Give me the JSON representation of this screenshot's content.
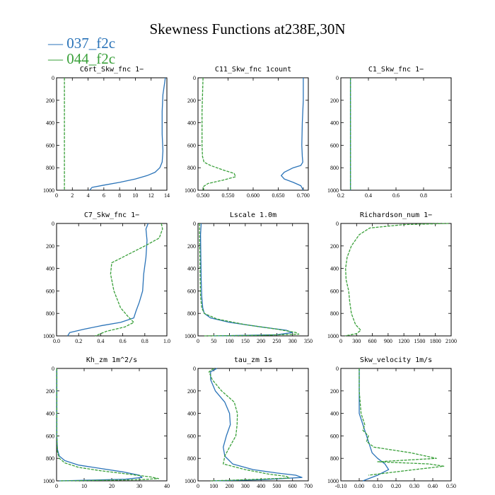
{
  "figure": {
    "title": "Skewness Functions at238E,30N",
    "legend": [
      {
        "label": "— 037_f2c",
        "color": "#2a73b8"
      },
      {
        "label": "— 044_f2c",
        "color": "#3aa03a"
      }
    ]
  },
  "chart_data": [
    {
      "type": "line",
      "title": "C6rt_Skw_fnc   1−",
      "xlim": [
        0,
        14
      ],
      "ylim": [
        0,
        1000
      ],
      "y_inverted": true,
      "xticks": [
        0,
        2,
        4,
        6,
        8,
        10,
        12,
        14
      ],
      "yticks": [
        0,
        200,
        400,
        600,
        800,
        1000
      ],
      "series": [
        {
          "name": "037_f2c",
          "color": "#2a73b8",
          "dashed": false,
          "x": [
            13.8,
            13.7,
            13.5,
            13.4,
            13.4,
            13.5,
            13.4,
            13.1,
            12.5,
            11.5,
            10,
            8,
            6,
            4.5,
            4.2
          ],
          "y": [
            0,
            50,
            150,
            300,
            500,
            650,
            750,
            800,
            840,
            870,
            900,
            930,
            955,
            975,
            1000
          ]
        },
        {
          "name": "044_f2c",
          "color": "#3aa03a",
          "dashed": true,
          "x": [
            1,
            1,
            1,
            1,
            1
          ],
          "y": [
            0,
            250,
            500,
            750,
            1000
          ]
        }
      ]
    },
    {
      "type": "line",
      "title": "C11_Skw_fnc   1count",
      "xlim": [
        0.49,
        0.71
      ],
      "ylim": [
        0,
        1000
      ],
      "y_inverted": true,
      "xticks": [
        0.5,
        0.55,
        0.6,
        0.65,
        0.7
      ],
      "xtick_labels": [
        "0.500",
        "0.550",
        "0.600",
        "0.650",
        "0.700"
      ],
      "yticks": [
        0,
        200,
        400,
        600,
        800,
        1000
      ],
      "series": [
        {
          "name": "037_f2c",
          "color": "#2a73b8",
          "dashed": false,
          "x": [
            0.7,
            0.7,
            0.698,
            0.697,
            0.698,
            0.699,
            0.695,
            0.68,
            0.662,
            0.656,
            0.662,
            0.68,
            0.695,
            0.7
          ],
          "y": [
            0,
            200,
            400,
            600,
            700,
            750,
            780,
            800,
            840,
            870,
            900,
            930,
            960,
            1000
          ]
        },
        {
          "name": "044_f2c",
          "color": "#3aa03a",
          "dashed": true,
          "x": [
            0.5,
            0.498,
            0.498,
            0.499,
            0.502,
            0.515,
            0.54,
            0.562,
            0.565,
            0.54,
            0.51,
            0.5,
            0.502
          ],
          "y": [
            0,
            300,
            600,
            700,
            750,
            780,
            820,
            850,
            880,
            910,
            940,
            970,
            1000
          ]
        }
      ]
    },
    {
      "type": "line",
      "title": "C1_Skw_fnc   1−",
      "xlim": [
        0.2,
        1.0
      ],
      "ylim": [
        0,
        1000
      ],
      "y_inverted": true,
      "xticks": [
        0.2,
        0.4,
        0.6,
        0.8,
        1.0
      ],
      "yticks": [
        0,
        200,
        400,
        600,
        800,
        1000
      ],
      "series": [
        {
          "name": "037_f2c",
          "color": "#2a73b8",
          "dashed": false,
          "x": [
            0.27,
            0.27,
            0.27
          ],
          "y": [
            0,
            500,
            1000
          ]
        },
        {
          "name": "044_f2c",
          "color": "#3aa03a",
          "dashed": true,
          "x": [
            0.27,
            0.27,
            0.27
          ],
          "y": [
            0,
            500,
            1000
          ]
        }
      ]
    },
    {
      "type": "line",
      "title": "C7_Skw_fnc   1−",
      "xlim": [
        0,
        1.0
      ],
      "ylim": [
        0,
        1000
      ],
      "y_inverted": true,
      "xticks": [
        0,
        0.2,
        0.4,
        0.6,
        0.8,
        1.0
      ],
      "xtick_labels": [
        "0.0",
        "0.2",
        "0.4",
        "0.6",
        "0.8",
        "1.0"
      ],
      "yticks": [
        0,
        200,
        400,
        600,
        800,
        1000
      ],
      "series": [
        {
          "name": "037_f2c",
          "color": "#2a73b8",
          "dashed": false,
          "x": [
            0.83,
            0.81,
            0.82,
            0.81,
            0.79,
            0.78,
            0.75,
            0.72,
            0.7,
            0.58,
            0.4,
            0.25,
            0.12,
            0.1
          ],
          "y": [
            0,
            50,
            150,
            300,
            450,
            600,
            700,
            780,
            840,
            880,
            910,
            940,
            970,
            1000
          ]
        },
        {
          "name": "044_f2c",
          "color": "#3aa03a",
          "dashed": true,
          "x": [
            0.95,
            0.96,
            0.93,
            0.8,
            0.6,
            0.5,
            0.49,
            0.52,
            0.58,
            0.65,
            0.7,
            0.62,
            0.45,
            0.35
          ],
          "y": [
            0,
            50,
            130,
            200,
            300,
            350,
            450,
            600,
            750,
            830,
            880,
            920,
            960,
            1000
          ]
        }
      ]
    },
    {
      "type": "line",
      "title": "Lscale   1.0m",
      "xlim": [
        0,
        350
      ],
      "ylim": [
        0,
        1000
      ],
      "y_inverted": true,
      "xticks": [
        0,
        50,
        100,
        150,
        200,
        250,
        300,
        350
      ],
      "yticks": [
        0,
        200,
        400,
        600,
        800,
        1000
      ],
      "series": [
        {
          "name": "037_f2c",
          "color": "#2a73b8",
          "dashed": false,
          "x": [
            10,
            8,
            9,
            10,
            12,
            15,
            20,
            40,
            100,
            200,
            280,
            300,
            250,
            50
          ],
          "y": [
            0,
            100,
            300,
            500,
            650,
            750,
            800,
            840,
            880,
            920,
            950,
            970,
            990,
            1000
          ]
        },
        {
          "name": "044_f2c",
          "color": "#3aa03a",
          "dashed": true,
          "x": [
            5,
            5,
            6,
            7,
            8,
            12,
            20,
            60,
            150,
            250,
            310,
            320,
            200,
            20
          ],
          "y": [
            0,
            100,
            300,
            500,
            650,
            750,
            800,
            850,
            900,
            940,
            970,
            985,
            995,
            1000
          ]
        }
      ]
    },
    {
      "type": "line",
      "title": "Richardson_num   1−",
      "xlim": [
        0,
        2100
      ],
      "ylim": [
        0,
        1000
      ],
      "y_inverted": true,
      "xticks": [
        0,
        300,
        600,
        900,
        1200,
        1500,
        1800,
        2100
      ],
      "yticks": [
        0,
        200,
        400,
        600,
        800,
        1000
      ],
      "series": [
        {
          "name": "044_f2c",
          "color": "#3aa03a",
          "dashed": true,
          "x": [
            2050,
            1200,
            550,
            350,
            200,
            120,
            90,
            100,
            150,
            170,
            200,
            280,
            380,
            300,
            80
          ],
          "y": [
            0,
            10,
            40,
            100,
            200,
            300,
            400,
            500,
            600,
            700,
            800,
            900,
            950,
            980,
            1000
          ]
        }
      ]
    },
    {
      "type": "line",
      "title": "Kh_zm   1m^2/s",
      "xlim": [
        0,
        40
      ],
      "ylim": [
        0,
        1000
      ],
      "y_inverted": true,
      "xticks": [
        0,
        10,
        20,
        30,
        40
      ],
      "yticks": [
        0,
        200,
        400,
        600,
        800,
        1000
      ],
      "series": [
        {
          "name": "037_f2c",
          "color": "#2a73b8",
          "dashed": false,
          "x": [
            0.1,
            0.1,
            0.1,
            0.3,
            1,
            3,
            8,
            16,
            24,
            30,
            31,
            25,
            10,
            1
          ],
          "y": [
            0,
            300,
            600,
            720,
            780,
            820,
            860,
            890,
            920,
            950,
            970,
            985,
            995,
            1000
          ]
        },
        {
          "name": "044_f2c",
          "color": "#3aa03a",
          "dashed": true,
          "x": [
            0.1,
            0.1,
            0.1,
            0.3,
            1,
            3,
            8,
            16,
            26,
            34,
            37,
            30,
            12,
            1
          ],
          "y": [
            0,
            300,
            600,
            740,
            800,
            840,
            880,
            910,
            940,
            965,
            980,
            990,
            997,
            1000
          ]
        }
      ]
    },
    {
      "type": "line",
      "title": "tau_zm   1s",
      "xlim": [
        0,
        700
      ],
      "ylim": [
        0,
        1000
      ],
      "y_inverted": true,
      "xticks": [
        0,
        100,
        200,
        300,
        400,
        500,
        600,
        700
      ],
      "yticks": [
        0,
        200,
        400,
        600,
        800,
        1000
      ],
      "series": [
        {
          "name": "037_f2c",
          "color": "#2a73b8",
          "dashed": false,
          "x": [
            120,
            80,
            80,
            110,
            170,
            200,
            205,
            180,
            160,
            170,
            220,
            350,
            500,
            620,
            660,
            400,
            100
          ],
          "y": [
            0,
            30,
            100,
            200,
            300,
            400,
            500,
            600,
            700,
            780,
            850,
            900,
            930,
            950,
            970,
            990,
            1000
          ]
        },
        {
          "name": "044_f2c",
          "color": "#3aa03a",
          "dashed": true,
          "x": [
            100,
            70,
            90,
            150,
            230,
            250,
            248,
            240,
            200,
            170,
            160,
            300,
            450,
            560,
            580,
            300,
            80
          ],
          "y": [
            0,
            30,
            100,
            200,
            300,
            400,
            500,
            600,
            700,
            780,
            850,
            900,
            940,
            960,
            975,
            990,
            1000
          ]
        }
      ]
    },
    {
      "type": "line",
      "title": "Skw_velocity   1m/s",
      "xlim": [
        -0.1,
        0.5
      ],
      "ylim": [
        0,
        1000
      ],
      "y_inverted": true,
      "xticks": [
        -0.1,
        0,
        0.1,
        0.2,
        0.3,
        0.4,
        0.5
      ],
      "xtick_labels": [
        "-0.10",
        "0.00",
        "0.10",
        "0.20",
        "0.30",
        "0.40",
        "0.50"
      ],
      "yticks": [
        0,
        200,
        400,
        600,
        800,
        1000
      ],
      "series": [
        {
          "name": "037_f2c",
          "color": "#2a73b8",
          "dashed": false,
          "x": [
            0,
            0,
            0,
            0.02,
            0.04,
            0.05,
            0.06,
            0.07,
            0.1,
            0.14,
            0.16,
            0.1,
            0.02
          ],
          "y": [
            0,
            200,
            400,
            500,
            600,
            650,
            700,
            750,
            800,
            850,
            900,
            950,
            1000
          ]
        },
        {
          "name": "044_f2c",
          "color": "#3aa03a",
          "dashed": true,
          "x": [
            0,
            0,
            0.01,
            0.03,
            0.02,
            0.05,
            0.04,
            0.08,
            0.28,
            0.42,
            0.1,
            0.38,
            0.46,
            0.3,
            0.05
          ],
          "y": [
            0,
            200,
            400,
            500,
            550,
            600,
            650,
            700,
            750,
            800,
            830,
            850,
            870,
            900,
            950
          ]
        }
      ]
    }
  ]
}
